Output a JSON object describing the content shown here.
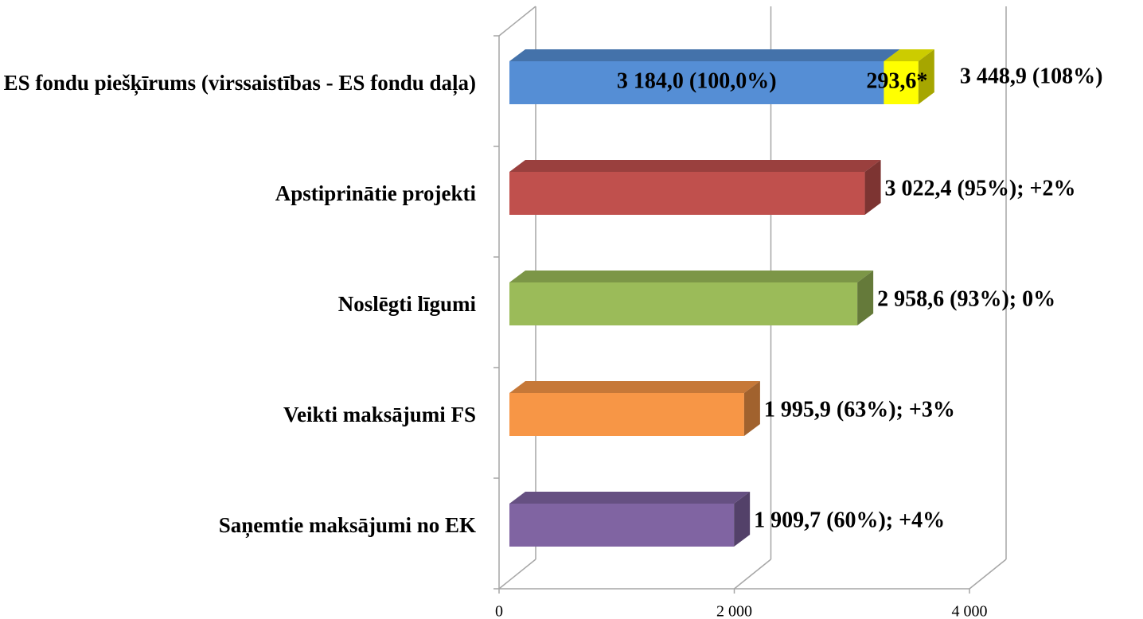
{
  "chart_data": {
    "type": "bar3d_horizontal",
    "categories": [
      "ES fondu piešķīrums (virssaistības - ES fondu daļa)",
      "Apstiprinātie projekti",
      "Noslēgti līgumi",
      "Veikti maksājumi FS",
      "Saņemtie maksājumi no EK"
    ],
    "series": [
      {
        "values": [
          3184.0,
          3022.4,
          2958.6,
          1995.9,
          1909.7
        ],
        "colors": [
          "#558ed5",
          "#c0504d",
          "#9bbb59",
          "#f79646",
          "#8064a2"
        ],
        "value_labels": [
          "3 184,0 (100,0%)",
          "3 022,4 (95%); +2%",
          "2 958,6 (93%); 0%",
          "1 995,9 (63%); +3%",
          "1 909,7 (60%); +4%"
        ]
      },
      {
        "values": [
          293.6,
          null,
          null,
          null,
          null
        ],
        "colors": [
          "#ffff00",
          null,
          null,
          null,
          null
        ],
        "value_labels": [
          "293,6*",
          null,
          null,
          null,
          null
        ]
      }
    ],
    "annotations": [
      {
        "text": "3 448,9 (108%)"
      }
    ],
    "xlim": [
      0,
      4000
    ],
    "xticks": [
      0,
      {
        "value": 2000,
        "label": "2 000"
      },
      {
        "value": 4000,
        "label": "4 000"
      }
    ],
    "grid": true
  }
}
